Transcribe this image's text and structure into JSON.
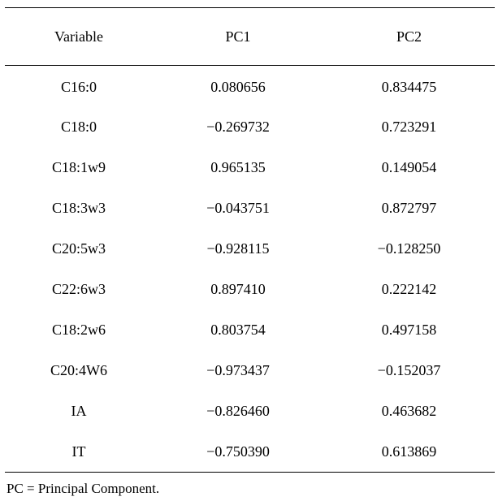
{
  "table": {
    "headers": [
      "Variable",
      "PC1",
      "PC2"
    ],
    "rows": [
      [
        "C16:0",
        "0.080656",
        "0.834475"
      ],
      [
        "C18:0",
        "−0.269732",
        "0.723291"
      ],
      [
        "C18:1w9",
        "0.965135",
        "0.149054"
      ],
      [
        "C18:3w3",
        "−0.043751",
        "0.872797"
      ],
      [
        "C20:5w3",
        "−0.928115",
        "−0.128250"
      ],
      [
        "C22:6w3",
        "0.897410",
        "0.222142"
      ],
      [
        "C18:2w6",
        "0.803754",
        "0.497158"
      ],
      [
        "C20:4W6",
        "−0.973437",
        "−0.152037"
      ],
      [
        "IA",
        "−0.826460",
        "0.463682"
      ],
      [
        "IT",
        "−0.750390",
        "0.613869"
      ]
    ]
  },
  "footnote": "PC = Principal Component."
}
